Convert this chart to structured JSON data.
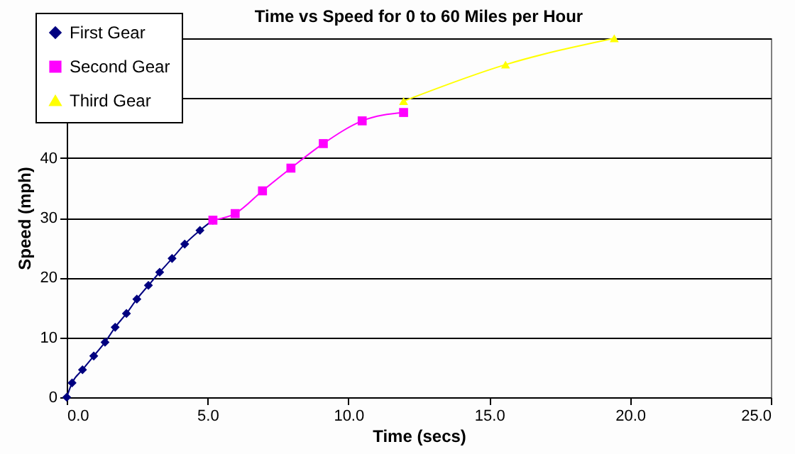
{
  "chart_data": {
    "type": "line",
    "title": "Time vs Speed for 0 to 60 Miles per Hour",
    "xlabel": "Time (secs)",
    "ylabel": "Speed (mph)",
    "xlim": [
      0,
      25
    ],
    "xticks": [
      {
        "value": 0,
        "label": "0.0"
      },
      {
        "value": 5,
        "label": "5.0"
      },
      {
        "value": 10,
        "label": "10.0"
      },
      {
        "value": 15,
        "label": "15.0"
      },
      {
        "value": 20,
        "label": "20.0"
      },
      {
        "value": 25,
        "label": "25.0"
      }
    ],
    "ylim": [
      0,
      60
    ],
    "yticks": [
      0,
      10,
      20,
      30,
      40,
      {
        "value": 50,
        "label": null
      },
      {
        "value": 60,
        "label": null
      }
    ],
    "grid": "y",
    "legend": "top left",
    "series": [
      {
        "name": "First Gear",
        "color": "#000080",
        "marker": "diamond",
        "x": [
          0,
          0.19,
          0.56,
          0.96,
          1.36,
          1.72,
          2.12,
          2.49,
          2.9,
          3.3,
          3.74,
          4.19,
          4.73,
          5.19
        ],
        "values": [
          0,
          2.4,
          4.6,
          6.9,
          9.2,
          11.7,
          14.0,
          16.4,
          18.7,
          20.9,
          23.2,
          25.6,
          27.9,
          29.6
        ]
      },
      {
        "name": "Second Gear",
        "color": "#ff00ff",
        "marker": "square",
        "x": [
          5.19,
          5.98,
          6.95,
          7.96,
          9.11,
          10.49,
          11.96
        ],
        "values": [
          29.6,
          30.7,
          34.5,
          38.3,
          42.4,
          46.2,
          47.6
        ]
      },
      {
        "name": "Third Gear",
        "color": "#ffff00",
        "marker": "triangle",
        "x": [
          11.96,
          15.58,
          19.44
        ],
        "values": [
          49.5,
          55.6,
          60
        ]
      }
    ]
  }
}
